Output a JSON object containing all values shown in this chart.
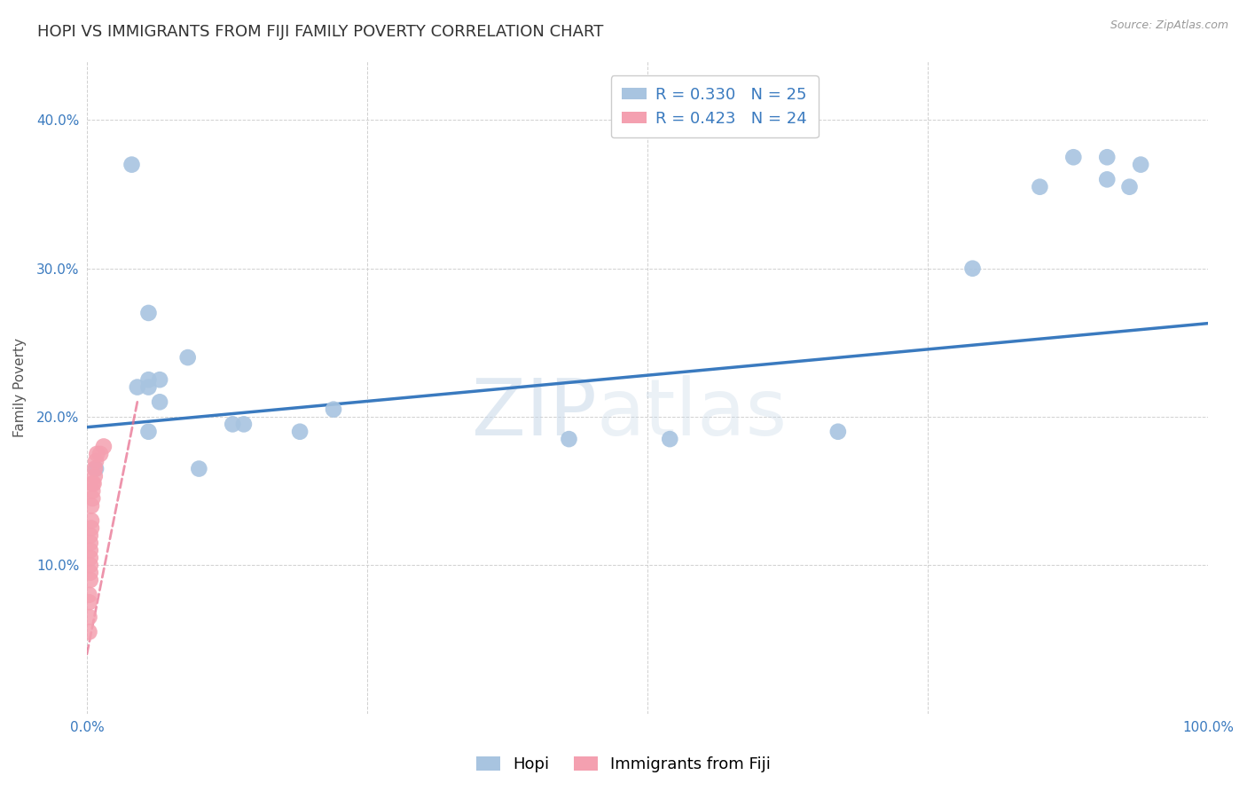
{
  "title": "HOPI VS IMMIGRANTS FROM FIJI FAMILY POVERTY CORRELATION CHART",
  "source": "Source: ZipAtlas.com",
  "ylabel": "Family Poverty",
  "xlim": [
    0,
    1.0
  ],
  "ylim": [
    0,
    0.44
  ],
  "hopi_color": "#a8c4e0",
  "fiji_color": "#f4a0b0",
  "hopi_line_color": "#3a7abf",
  "fiji_line_color": "#e87090",
  "hopi_R": 0.33,
  "hopi_N": 25,
  "fiji_R": 0.423,
  "fiji_N": 24,
  "watermark_zip": "ZIP",
  "watermark_atlas": "atlas",
  "hopi_x": [
    0.008,
    0.04,
    0.055,
    0.09,
    0.13,
    0.045,
    0.055,
    0.055,
    0.065,
    0.065,
    0.1,
    0.14,
    0.19,
    0.22,
    0.43,
    0.52,
    0.67,
    0.79,
    0.85,
    0.88,
    0.91,
    0.91,
    0.93,
    0.94,
    0.055
  ],
  "hopi_y": [
    0.165,
    0.37,
    0.27,
    0.24,
    0.195,
    0.22,
    0.22,
    0.225,
    0.225,
    0.21,
    0.165,
    0.195,
    0.19,
    0.205,
    0.185,
    0.185,
    0.19,
    0.3,
    0.355,
    0.375,
    0.375,
    0.36,
    0.355,
    0.37,
    0.19
  ],
  "fiji_x": [
    0.002,
    0.002,
    0.002,
    0.002,
    0.003,
    0.003,
    0.003,
    0.003,
    0.003,
    0.003,
    0.003,
    0.004,
    0.004,
    0.004,
    0.005,
    0.005,
    0.005,
    0.006,
    0.007,
    0.007,
    0.008,
    0.009,
    0.012,
    0.015
  ],
  "fiji_y": [
    0.055,
    0.065,
    0.075,
    0.08,
    0.09,
    0.095,
    0.1,
    0.105,
    0.11,
    0.115,
    0.12,
    0.125,
    0.13,
    0.14,
    0.145,
    0.15,
    0.155,
    0.155,
    0.16,
    0.165,
    0.17,
    0.175,
    0.175,
    0.18
  ],
  "hopi_line_x0": 0.0,
  "hopi_line_y0": 0.193,
  "hopi_line_x1": 1.0,
  "hopi_line_y1": 0.263,
  "fiji_line_x0": 0.0,
  "fiji_line_y0": 0.04,
  "fiji_line_x1": 0.045,
  "fiji_line_y1": 0.21,
  "background_color": "#ffffff",
  "grid_color": "#d0d0d0",
  "title_fontsize": 13,
  "axis_label_fontsize": 11,
  "tick_fontsize": 11,
  "legend_fontsize": 13
}
